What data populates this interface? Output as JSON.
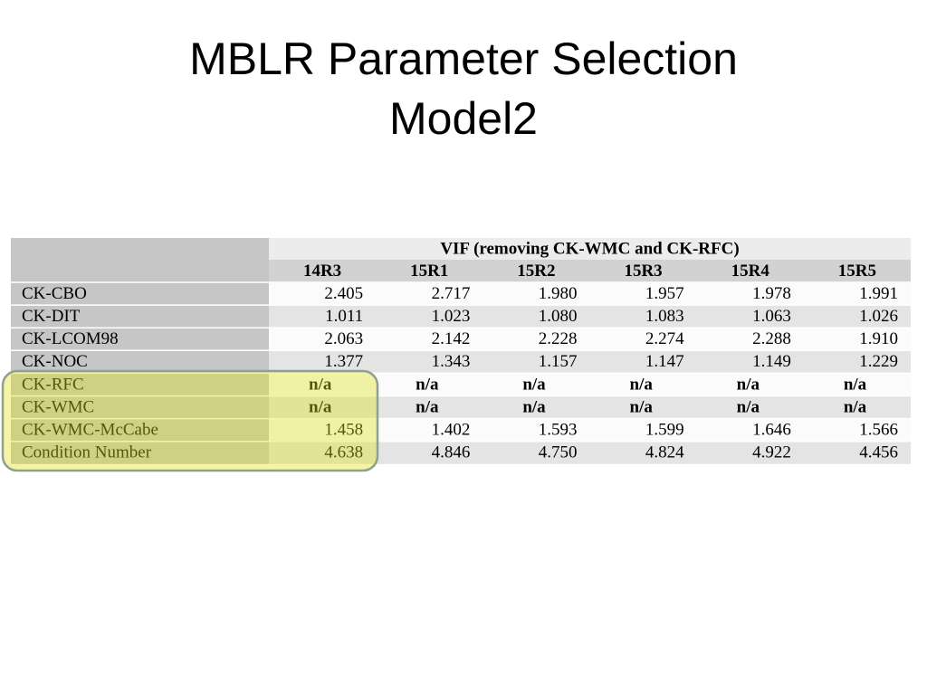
{
  "header": {
    "title_lines": [
      "MBLR Parameter Selection",
      "Model2"
    ]
  },
  "table": {
    "group_header": "VIF (removing CK-WMC and CK-RFC)",
    "columns": [
      "14R3",
      "15R1",
      "15R2",
      "15R3",
      "15R4",
      "15R5"
    ],
    "rows": [
      {
        "label": "CK-CBO",
        "values": [
          "2.405",
          "2.717",
          "1.980",
          "1.957",
          "1.978",
          "1.991"
        ]
      },
      {
        "label": "CK-DIT",
        "values": [
          "1.011",
          "1.023",
          "1.080",
          "1.083",
          "1.063",
          "1.026"
        ]
      },
      {
        "label": "CK-LCOM98",
        "values": [
          "2.063",
          "2.142",
          "2.228",
          "2.274",
          "2.288",
          "1.910"
        ]
      },
      {
        "label": "CK-NOC",
        "values": [
          "1.377",
          "1.343",
          "1.157",
          "1.147",
          "1.149",
          "1.229"
        ]
      },
      {
        "label": "CK-RFC",
        "values": [
          "n/a",
          "n/a",
          "n/a",
          "n/a",
          "n/a",
          "n/a"
        ]
      },
      {
        "label": "CK-WMC",
        "values": [
          "n/a",
          "n/a",
          "n/a",
          "n/a",
          "n/a",
          "n/a"
        ]
      },
      {
        "label": "CK-WMC-McCabe",
        "values": [
          "1.458",
          "1.402",
          "1.593",
          "1.599",
          "1.646",
          "1.566"
        ]
      },
      {
        "label": "Condition Number",
        "values": [
          "4.638",
          "4.846",
          "4.750",
          "4.824",
          "4.922",
          "4.456"
        ]
      }
    ]
  }
}
